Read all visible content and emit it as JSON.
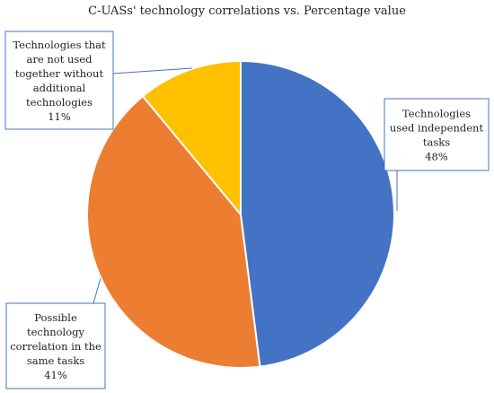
{
  "chart_data": {
    "type": "pie",
    "title": "C-UASs' technology correlations vs. Percentage value",
    "legend": "none",
    "slices": [
      {
        "name": "Technologies used independent tasks",
        "value": 48,
        "label_lines": [
          "Technologies",
          "used independent",
          "tasks",
          "48%"
        ],
        "color": "#4472C4"
      },
      {
        "name": "Possible technology correlation in the same tasks",
        "value": 41,
        "label_lines": [
          "Possible",
          "technology",
          "correlation in the",
          "same tasks",
          "41%"
        ],
        "color": "#ED7D31"
      },
      {
        "name": "Technologies that are not used together without additional technologies",
        "value": 11,
        "label_lines": [
          "Technologies that",
          "are not used",
          "together without",
          "additional",
          "technologies",
          "11%"
        ],
        "color": "#FFC000"
      }
    ],
    "callout_border_color": "#4472C4",
    "slice_border_color": "#ffffff"
  }
}
